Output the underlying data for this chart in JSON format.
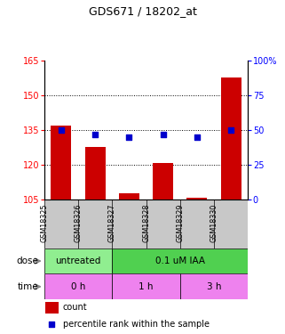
{
  "title": "GDS671 / 18202_at",
  "samples": [
    "GSM18325",
    "GSM18326",
    "GSM18327",
    "GSM18328",
    "GSM18329",
    "GSM18330"
  ],
  "bar_values": [
    137,
    128,
    108,
    121,
    106,
    158
  ],
  "bar_bottom": 105,
  "scatter_values": [
    50,
    47,
    45,
    47,
    45,
    50
  ],
  "bar_color": "#cc0000",
  "scatter_color": "#0000cc",
  "ylim_left": [
    105,
    165
  ],
  "ylim_right": [
    0,
    100
  ],
  "yticks_left": [
    105,
    120,
    135,
    150,
    165
  ],
  "yticks_right": [
    0,
    25,
    50,
    75,
    100
  ],
  "yticklabels_right": [
    "0",
    "25",
    "50",
    "75",
    "100%"
  ],
  "dose_arrow_label": "dose",
  "time_arrow_label": "time",
  "legend_count_label": "count",
  "legend_pct_label": "percentile rank within the sample",
  "dose_untreated_color": "#90ee90",
  "dose_iaa_color": "#50d050",
  "time_color": "#ee82ee",
  "sample_bg_color": "#c8c8c8",
  "bar_width": 0.6
}
